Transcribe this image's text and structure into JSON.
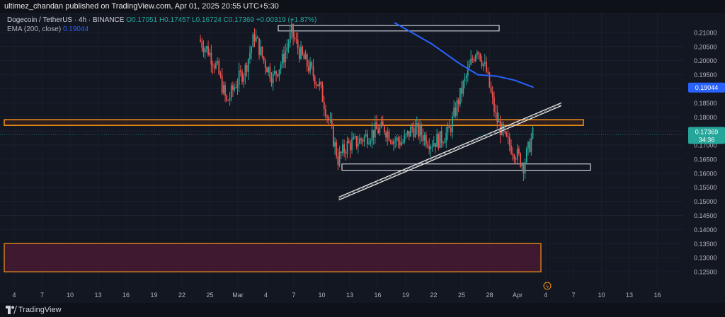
{
  "header": {
    "publisher_line": "ultimez_chandan published on TradingView.com, Apr 01, 2025 20:55 UTC+5:30"
  },
  "legend": {
    "symbol": "Dogecoin / TetherUS · 4h · BINANCE",
    "ohlc": "O0.17051 H0.17457 L0.16724 C0.17369 +0.00319 (+1.87%)",
    "ema_label": "EMA (200, close)",
    "ema_value": "0.19044"
  },
  "footer": {
    "brand": "TradingView"
  },
  "colors": {
    "up": "#26a69a",
    "down": "#ef5350",
    "ema": "#2962ff",
    "zone": "#f7931a",
    "zone_fill": "#4a1a33",
    "box": "#d1d4dc",
    "price_tag": "#26a69a",
    "ema_tag": "#2962ff"
  },
  "chart_data": {
    "type": "candlestick",
    "symbol": "Dogecoin / TetherUS",
    "interval": "4h",
    "exchange": "BINANCE",
    "ylim": [
      0.122,
      0.214
    ],
    "y_ticks": [
      0.125,
      0.13,
      0.135,
      0.14,
      0.145,
      0.15,
      0.155,
      0.16,
      0.165,
      0.17,
      0.175,
      0.18,
      0.185,
      0.19,
      0.195,
      0.2,
      0.205,
      0.21
    ],
    "x_ticks": [
      "4",
      "7",
      "10",
      "13",
      "16",
      "19",
      "22",
      "25",
      "Mar",
      "4",
      "7",
      "10",
      "13",
      "16",
      "19",
      "22",
      "25",
      "28",
      "Apr",
      "4",
      "7",
      "10",
      "13",
      "16"
    ],
    "last_price_label": "0.17369",
    "last_price_countdown": "34:36",
    "ema_price_label": "0.19044",
    "close_path": [
      [
        "Feb 24",
        0.2075
      ],
      [
        "Feb 25",
        0.2035
      ],
      [
        "Feb 26",
        0.197
      ],
      [
        "Feb 27",
        0.185
      ],
      [
        "Feb 28",
        0.192
      ],
      [
        "Mar 1",
        0.197
      ],
      [
        "Mar 2",
        0.209
      ],
      [
        "Mar 3",
        0.2
      ],
      [
        "Mar 4",
        0.194
      ],
      [
        "Mar 5",
        0.2
      ],
      [
        "Mar 6",
        0.21
      ],
      [
        "Mar 7",
        0.202
      ],
      [
        "Mar 8",
        0.197
      ],
      [
        "Mar 9",
        0.191
      ],
      [
        "Mar 10",
        0.179
      ],
      [
        "Mar 11",
        0.165
      ],
      [
        "Mar 12",
        0.17
      ],
      [
        "Mar 13",
        0.171
      ],
      [
        "Mar 14",
        0.173
      ],
      [
        "Mar 15",
        0.175
      ],
      [
        "Mar 16",
        0.176
      ],
      [
        "Mar 17",
        0.172
      ],
      [
        "Mar 18",
        0.171
      ],
      [
        "Mar 19",
        0.176
      ],
      [
        "Mar 20",
        0.174
      ],
      [
        "Mar 21",
        0.171
      ],
      [
        "Mar 22",
        0.172
      ],
      [
        "Mar 23",
        0.175
      ],
      [
        "Mar 24",
        0.186
      ],
      [
        "Mar 25",
        0.196
      ],
      [
        "Mar 26",
        0.205
      ],
      [
        "Mar 27",
        0.196
      ],
      [
        "Mar 28",
        0.18
      ],
      [
        "Mar 29",
        0.172
      ],
      [
        "Mar 30",
        0.168
      ],
      [
        "Mar 31",
        0.163
      ],
      [
        "Apr 1",
        0.1737
      ]
    ],
    "ema_200": [
      [
        "Mar 17",
        0.2135
      ],
      [
        "Mar 21",
        0.206
      ],
      [
        "Mar 24",
        0.199
      ],
      [
        "Mar 26",
        0.195
      ],
      [
        "Mar 28",
        0.1945
      ],
      [
        "Mar 30",
        0.193
      ],
      [
        "Apr 1",
        0.1905
      ]
    ],
    "trendline": [
      [
        "Mar 11",
        0.151
      ],
      [
        "Apr 4",
        0.1845
      ]
    ],
    "resistance_zone": [
      0.1775,
      0.1785
    ],
    "support_box": [
      0.1618,
      0.1633
    ],
    "top_box": [
      0.2113,
      0.2125
    ],
    "demand_zone": [
      0.125,
      0.135
    ]
  }
}
